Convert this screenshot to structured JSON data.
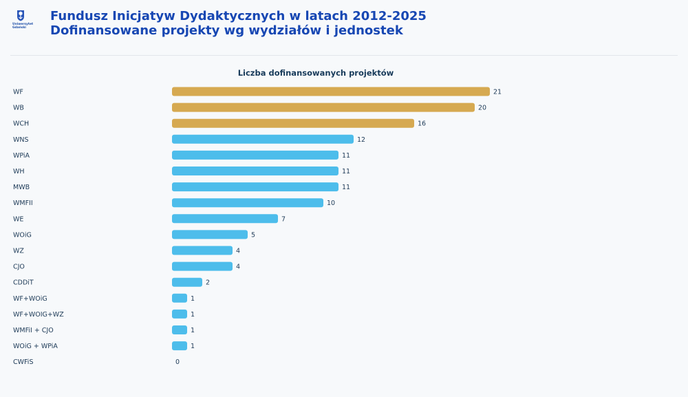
{
  "header": {
    "logo_text": "Uniwersytet Gdański",
    "title_line1": "Fundusz Inicjatyw Dydaktycznych w latach 2012-2025",
    "title_line2": "Dofinansowane projekty wg wydziałów i jednostek"
  },
  "colors": {
    "highlight": "#d6a951",
    "default": "#4dbdeb",
    "title": "#1747b3"
  },
  "icons": [
    "university-crest-icon"
  ],
  "chart_data": {
    "type": "bar",
    "orientation": "horizontal",
    "title": "Liczba dofinansowanych projektów",
    "categories": [
      "WF",
      "WB",
      "WCH",
      "WNS",
      "WPiA",
      "WH",
      "MWB",
      "WMFII",
      "WE",
      "WOiG",
      "WZ",
      "CJO",
      "CDDiT",
      "WF+WOiG",
      "WF+WOIG+WZ",
      "WMFiI + CJO",
      "WOiG + WPiA",
      "CWFiS"
    ],
    "values": [
      21,
      20,
      16,
      12,
      11,
      11,
      11,
      10,
      7,
      5,
      4,
      4,
      2,
      1,
      1,
      1,
      1,
      0
    ],
    "highlighted": [
      "WF",
      "WB",
      "WCH"
    ],
    "xlim": [
      0,
      22
    ],
    "grid": false,
    "legend": "none"
  }
}
